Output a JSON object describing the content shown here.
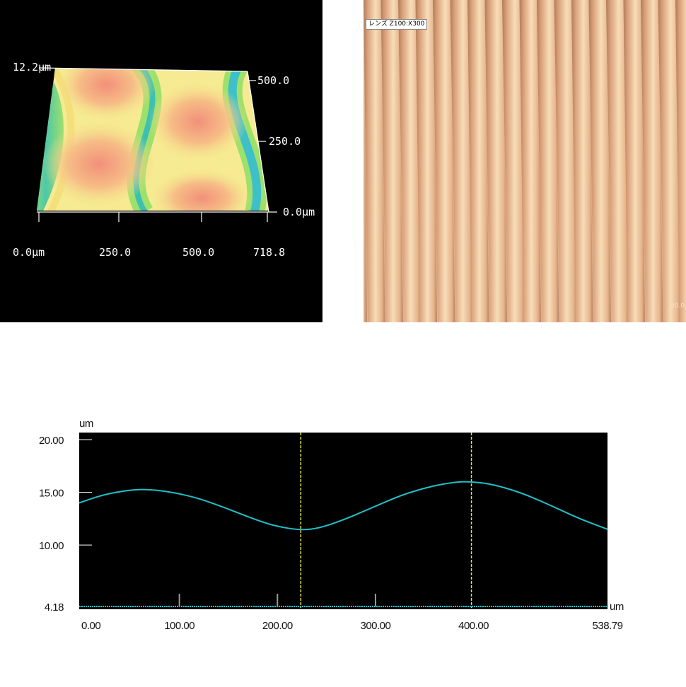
{
  "surface": {
    "z_max_label": "12.2μm",
    "y_ticks": [
      "500.0",
      "250.0",
      "0.0μm"
    ],
    "x_ticks": [
      "0.0μm",
      "250.0",
      "500.0",
      "718.8"
    ]
  },
  "micrograph": {
    "label": "レンズ Z100:X300",
    "scale_text": "50.0"
  },
  "chart_data": {
    "type": "line",
    "ylabel_unit": "um",
    "xlabel_unit": "um",
    "y_tick_labels": [
      "20.00",
      "15.00",
      "10.00",
      "4.18"
    ],
    "y_ticks": [
      20.0,
      15.0,
      10.0,
      4.18
    ],
    "x_tick_labels": [
      "0.00",
      "100.00",
      "200.00",
      "300.00",
      "400.00",
      "538.79"
    ],
    "x_ticks": [
      0,
      100,
      200,
      300,
      400,
      538.79
    ],
    "xlim": [
      0,
      538.79
    ],
    "ylim": [
      4.18,
      20.0
    ],
    "cursors_x": [
      226,
      400
    ],
    "series": [
      {
        "color": "#20c0c8",
        "x": [
          0,
          25,
          50,
          67,
          90,
          120,
          150,
          180,
          200,
          226,
          245,
          270,
          300,
          330,
          360,
          385,
          400,
          420,
          450,
          480,
          510,
          538.79
        ],
        "y": [
          14.0,
          14.8,
          15.2,
          15.3,
          15.1,
          14.5,
          13.5,
          12.4,
          11.8,
          11.4,
          11.6,
          12.4,
          13.6,
          14.8,
          15.6,
          16.0,
          16.0,
          15.8,
          15.0,
          13.8,
          12.5,
          11.5
        ]
      }
    ],
    "baseline_y": 4.18
  },
  "colors": {
    "profile_line": "#20c0c8",
    "cursor": "#e8e050",
    "plot_bg": "#000000"
  }
}
